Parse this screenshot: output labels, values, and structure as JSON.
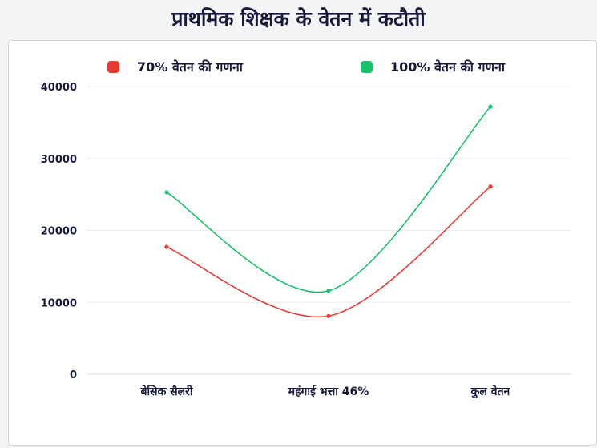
{
  "title": "प्राथमिक शिक्षक के वेतन में कटौती",
  "colors": {
    "series_red": "#e83a35",
    "series_green": "#1bbf6a"
  },
  "chart_data": {
    "type": "line",
    "categories": [
      "बेसिक सैलरी",
      "महंगाई भत्ता 46%",
      "कुल वेतन"
    ],
    "series": [
      {
        "name": "70% वेतन की गणना",
        "values": [
          17700,
          8100,
          26100
        ]
      },
      {
        "name": "100% वेतन की गणना",
        "values": [
          25300,
          11600,
          37200
        ]
      }
    ],
    "ylim": [
      0,
      40000
    ],
    "yticks": [
      "0",
      "10000",
      "20000",
      "30000",
      "40000"
    ],
    "grid": true,
    "legend_position": "top",
    "smooth": true
  }
}
